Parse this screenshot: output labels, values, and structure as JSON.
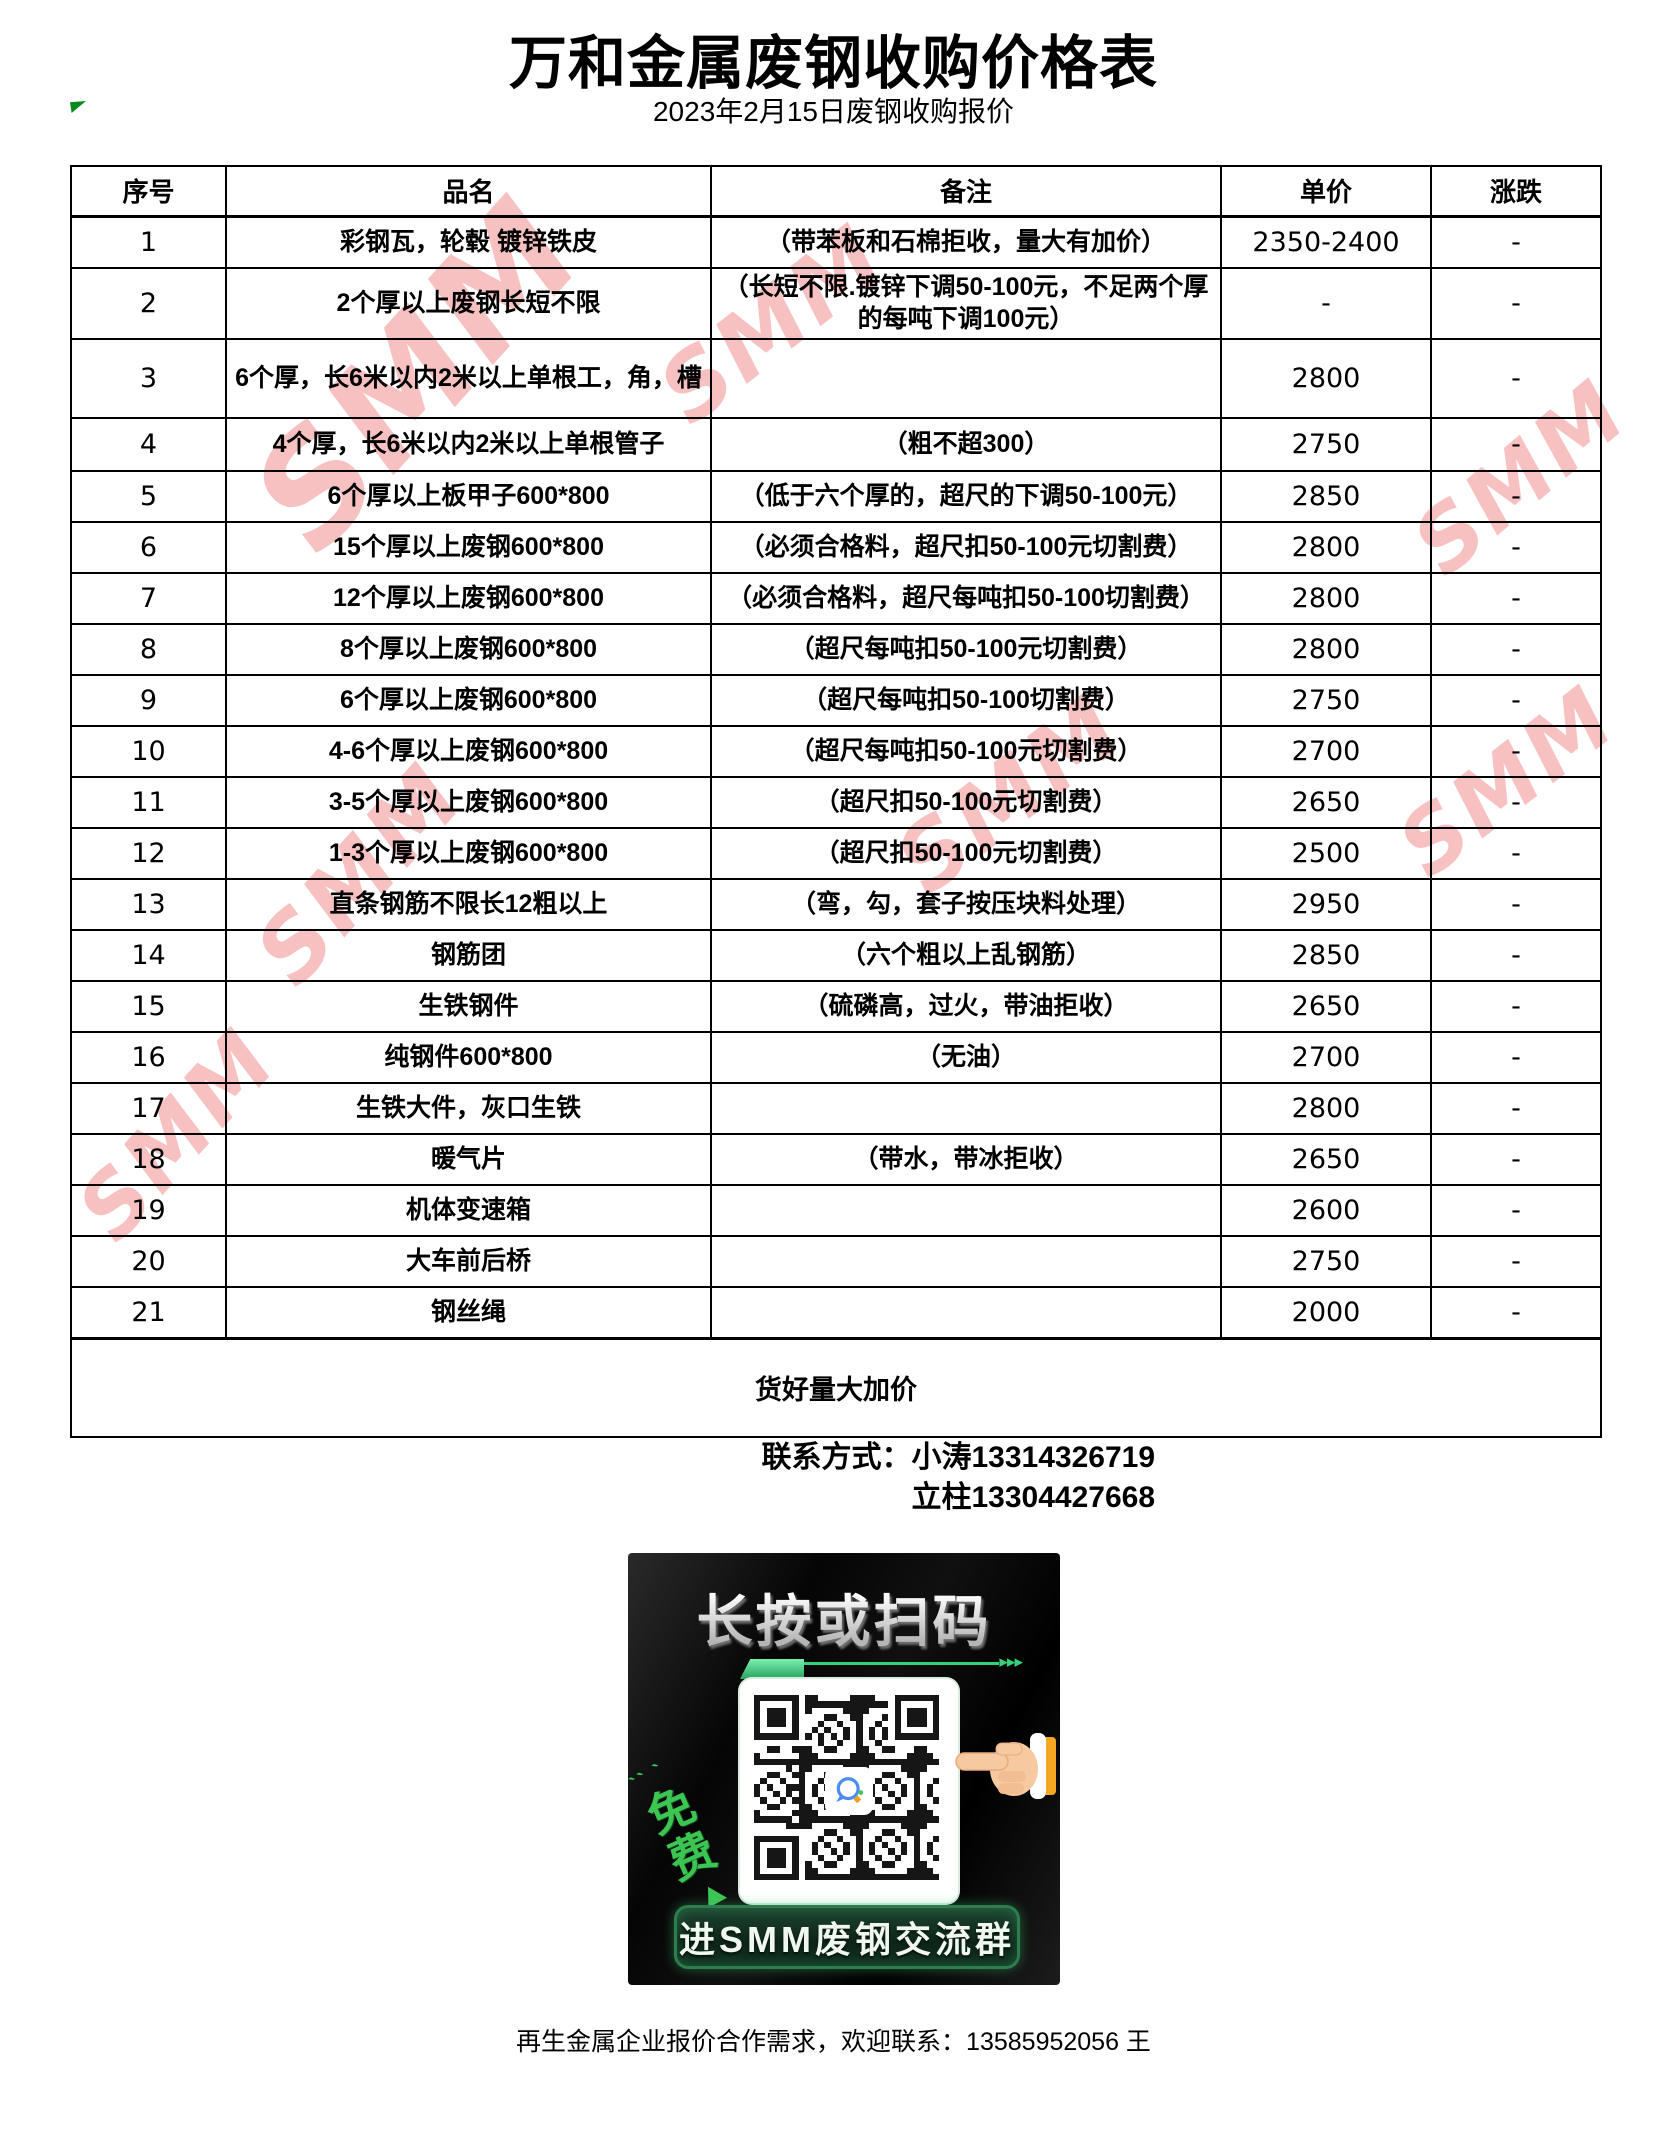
{
  "page": {
    "title": "万和金属废钢收购价格表",
    "subtitle": "2023年2月15日废钢收购报价"
  },
  "table": {
    "headers": [
      "序号",
      "品名",
      "备注",
      "单价",
      "涨跌"
    ],
    "rows": [
      {
        "no": "1",
        "name": "彩钢瓦，轮毂 镀锌铁皮",
        "note": "（带苯板和石棉拒收，量大有加价）",
        "price": "2350-2400",
        "change": "-"
      },
      {
        "no": "2",
        "name": "2个厚以上废钢长短不限",
        "note": "（长短不限.镀锌下调50-100元，不足两个厚的每吨下调100元）",
        "price": "-",
        "change": "-"
      },
      {
        "no": "3",
        "name": "6个厚，长6米以内2米以上单根工，角，槽",
        "note": "",
        "price": "2800",
        "change": "-"
      },
      {
        "no": "4",
        "name": "4个厚，长6米以内2米以上单根管子",
        "note": "（粗不超300）",
        "price": "2750",
        "change": "-"
      },
      {
        "no": "5",
        "name": "6个厚以上板甲子600*800",
        "note": "（低于六个厚的，超尺的下调50-100元）",
        "price": "2850",
        "change": "-"
      },
      {
        "no": "6",
        "name": "15个厚以上废钢600*800",
        "note": "（必须合格料，超尺扣50-100元切割费）",
        "price": "2800",
        "change": "-"
      },
      {
        "no": "7",
        "name": "12个厚以上废钢600*800",
        "note": "（必须合格料，超尺每吨扣50-100切割费）",
        "price": "2800",
        "change": "-"
      },
      {
        "no": "8",
        "name": "8个厚以上废钢600*800",
        "note": "（超尺每吨扣50-100元切割费）",
        "price": "2800",
        "change": "-"
      },
      {
        "no": "9",
        "name": "6个厚以上废钢600*800",
        "note": "（超尺每吨扣50-100切割费）",
        "price": "2750",
        "change": "-"
      },
      {
        "no": "10",
        "name": "4-6个厚以上废钢600*800",
        "note": "（超尺每吨扣50-100元切割费）",
        "price": "2700",
        "change": "-"
      },
      {
        "no": "11",
        "name": "3-5个厚以上废钢600*800",
        "note": "（超尺扣50-100元切割费）",
        "price": "2650",
        "change": "-"
      },
      {
        "no": "12",
        "name": "1-3个厚以上废钢600*800",
        "note": "（超尺扣50-100元切割费）",
        "price": "2500",
        "change": "-"
      },
      {
        "no": "13",
        "name": "直条钢筋不限长12粗以上",
        "note": "（弯，勾，套子按压块料处理）",
        "price": "2950",
        "change": "-"
      },
      {
        "no": "14",
        "name": "钢筋团",
        "note": "（六个粗以上乱钢筋）",
        "price": "2850",
        "change": "-"
      },
      {
        "no": "15",
        "name": "生铁钢件",
        "note": "（硫磷高，过火，带油拒收）",
        "price": "2650",
        "change": "-"
      },
      {
        "no": "16",
        "name": "纯钢件600*800",
        "note": "（无油）",
        "price": "2700",
        "change": "-"
      },
      {
        "no": "17",
        "name": "生铁大件，灰口生铁",
        "note": "",
        "price": "2800",
        "change": "-"
      },
      {
        "no": "18",
        "name": "暖气片",
        "note": "（带水，带冰拒收）",
        "price": "2650",
        "change": "-"
      },
      {
        "no": "19",
        "name": "机体变速箱",
        "note": "",
        "price": "2600",
        "change": "-"
      },
      {
        "no": "20",
        "name": "大车前后桥",
        "note": "",
        "price": "2750",
        "change": "-"
      },
      {
        "no": "21",
        "name": "钢丝绳",
        "note": "",
        "price": "2000",
        "change": "-"
      }
    ],
    "footer_note": "货好量大加价"
  },
  "contact": {
    "line1": "联系方式：小涛13314326719",
    "line2": "立柱13304427668"
  },
  "banner": {
    "headline": "长按或扫码",
    "free_label": "免费",
    "button_label": "进SMM废钢交流群",
    "arrows": "▸▸▸",
    "sparks": "〝"
  },
  "footer": {
    "caption": "再生金属企业报价合作需求，欢迎联系：13585952056 王"
  },
  "watermark": {
    "text": "SMM",
    "color": "#ec6c6c"
  },
  "colors": {
    "footer_note_red": "#ff0000",
    "banner_green": "#35d07c",
    "banner_bg": "#0a0a0a"
  }
}
